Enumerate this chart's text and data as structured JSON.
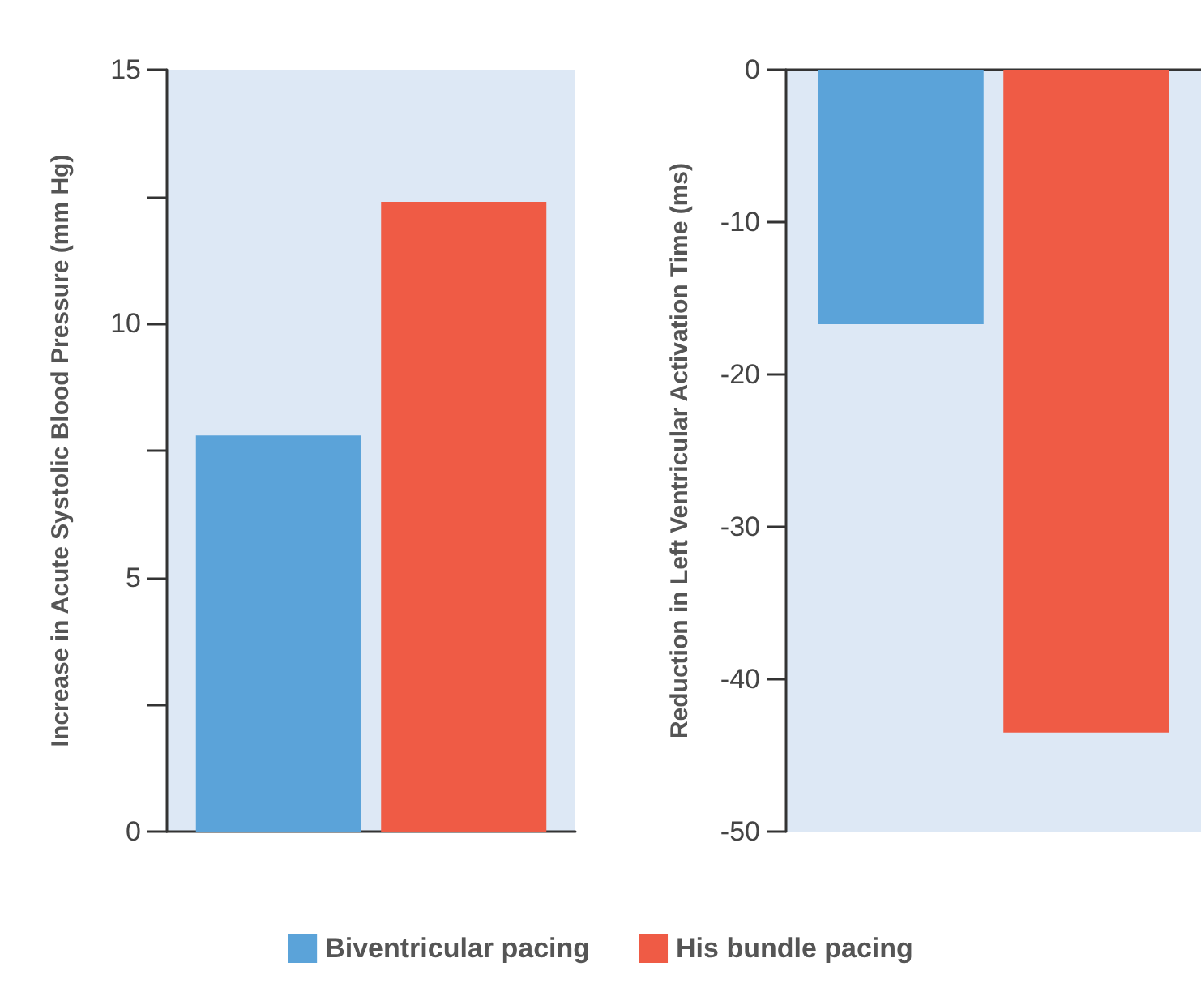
{
  "chart_data": [
    {
      "type": "bar",
      "ylabel": "Increase in Acute Systolic Blood Pressure (mm Hg)",
      "categories": [
        null
      ],
      "series": [
        {
          "name": "Biventricular pacing",
          "color": "#5ba3d9",
          "values": [
            7.8
          ]
        },
        {
          "name": "His bundle pacing",
          "color": "#ef5b45",
          "values": [
            12.4
          ]
        }
      ],
      "ylim": [
        0,
        15
      ],
      "yticks": [
        0,
        {
          "value": 2.5,
          "label": null
        },
        5,
        {
          "value": 7.5,
          "label": null
        },
        10,
        {
          "value": 12.5,
          "label": null
        },
        15
      ],
      "grid": false,
      "legend": "bottom"
    },
    {
      "type": "bar",
      "ylabel": "Reduction in Left Ventricular Activation Time (ms)",
      "categories": [
        null
      ],
      "series": [
        {
          "color": "#5ba3d9",
          "values": [
            -16.7
          ]
        },
        {
          "color": "#ef5b45",
          "values": [
            -43.5
          ]
        }
      ],
      "ylim": [
        -50,
        0
      ],
      "yticks": [
        -50,
        -40,
        -30,
        -20,
        -10,
        0
      ],
      "grid": false
    }
  ]
}
